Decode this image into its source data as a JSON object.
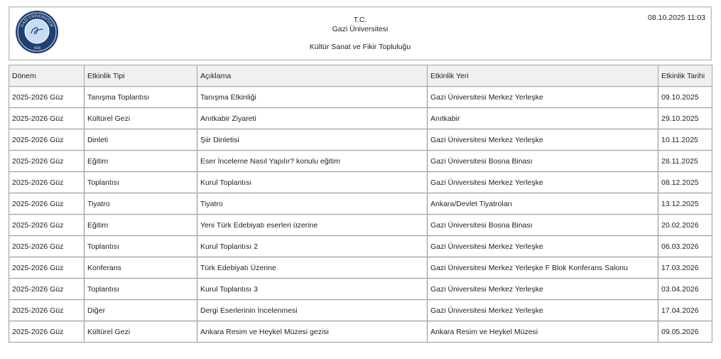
{
  "header": {
    "logo_text": "GAZİ ÜNİVERSİTESİ 1926",
    "line1": "T.C.",
    "line2": "Gazi Üniversitesi",
    "line3": "Kültür Sanat ve Fikir Topluluğu",
    "datetime": "08.10.2025 11:03"
  },
  "table": {
    "columns": [
      "Dönem",
      "Etkinlik Tipi",
      "Açıklama",
      "Etkinlik Yeri",
      "Etkinlik Tarihi"
    ],
    "rows": [
      [
        "2025-2026 Güz",
        "Tanışma Toplantısı",
        "Tanışma Etkinliği",
        "Gazi Üniversitesi Merkez Yerleşke",
        "09.10.2025"
      ],
      [
        "2025-2026 Güz",
        "Kültürel Gezi",
        "Anıtkabir Ziyareti",
        "Anıtkabir",
        "29.10.2025"
      ],
      [
        "2025-2026 Güz",
        "Dinleti",
        "Şiir Dinletisi",
        "Gazi Üniversitesi Merkez Yerleşke",
        "10.11.2025"
      ],
      [
        "2025-2026 Güz",
        "Eğitim",
        "Eser İnceleme Nasıl Yapılır? konulu eğitim",
        "Gazi Üniversitesi Bosna Binası",
        "28.11.2025"
      ],
      [
        "2025-2026 Güz",
        "Toplantısı",
        "Kurul Toplantısı",
        "Gazi Üniversitesi Merkez Yerleşke",
        "08.12.2025"
      ],
      [
        "2025-2026 Güz",
        "Tiyatro",
        "Tiyatro",
        "Ankara/Devlet Tiyatroları",
        "13.12.2025"
      ],
      [
        "2025-2026 Güz",
        "Eğitim",
        "Yeni Türk Edebiyatı eserleri üzerine",
        "Gazi Üniversitesi Bosna Binası",
        "20.02.2026"
      ],
      [
        "2025-2026 Güz",
        "Toplantısı",
        "Kurul Toplantısı 2",
        "Gazi Üniversitesi Merkez Yerleşke",
        "06.03.2026"
      ],
      [
        "2025-2026 Güz",
        "Konferans",
        "Türk Edebiyatı Üzerine",
        "Gazi Üniversitesi Merkez Yerleşke F Blok Konferans Salonu",
        "17.03.2026"
      ],
      [
        "2025-2026 Güz",
        "Toplantısı",
        "Kurul Toplantısı 3",
        "Gazi Üniversitesi Merkez Yerleşke",
        "03.04.2026"
      ],
      [
        "2025-2026 Güz",
        "Diğer",
        "Dergi Eserlerinin İncelenmesi",
        "Gazi Üniversitesi Merkez Yerleşke",
        "17.04.2026"
      ],
      [
        "2025-2026 Güz",
        "Kültürel Gezi",
        "Ankara Resim ve Heykel Müzesi gezisi",
        "Ankara Resim ve Heykel Müzesi",
        "09.05.2026"
      ]
    ]
  }
}
